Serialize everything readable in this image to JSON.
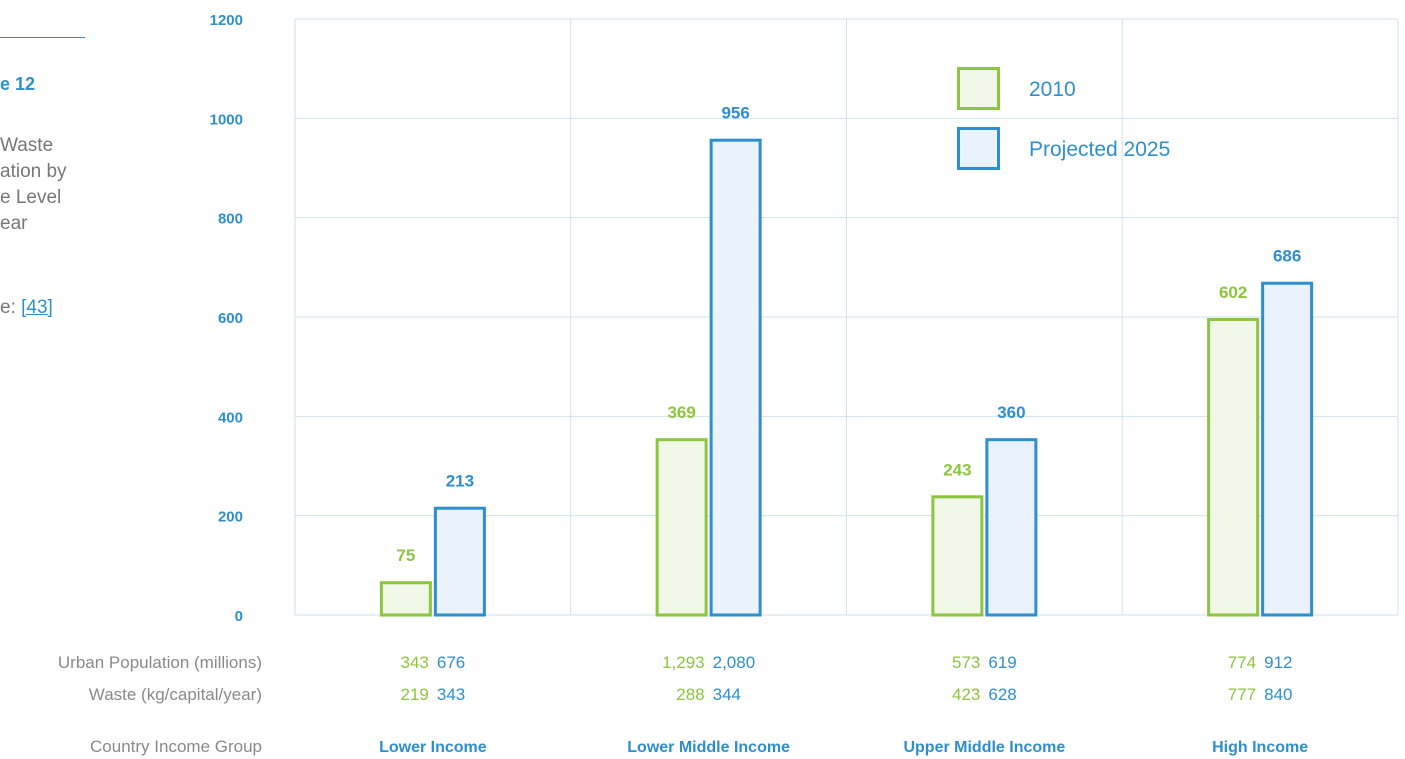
{
  "sidebar": {
    "figure_label": "e 12",
    "title_lines": [
      " Waste",
      "ation by",
      "e Level",
      "ear"
    ],
    "source_prefix": "e: ",
    "source_ref": "[43]"
  },
  "colors": {
    "series_2010": "#8cc63f",
    "series_2010_fill": "#f1f8e8",
    "series_2025": "#2e8fcf",
    "series_2025_fill": "#eaf3fb",
    "accent": "#2e8fcf",
    "muted_text": "#8a8a8a"
  },
  "chart_data": {
    "type": "bar",
    "categories": [
      "Lower Income",
      "Lower Middle Income",
      "Upper Middle Income",
      "High Income"
    ],
    "series": [
      {
        "name": "2010",
        "values": [
          75,
          369,
          243,
          602
        ]
      },
      {
        "name": "Projected 2025",
        "values": [
          213,
          956,
          360,
          686
        ]
      }
    ],
    "bar_heights": {
      "2010": [
        68,
        356,
        241,
        598
      ],
      "Projected 2025": [
        218,
        959,
        356,
        671
      ]
    },
    "ylim": [
      0,
      1200
    ],
    "yticks": [
      0,
      200,
      400,
      600,
      800,
      1000,
      1200
    ],
    "grid": true,
    "legend_position": "top-right",
    "table_rows": [
      {
        "label": "Urban Population (millions)",
        "values_2010": [
          "343",
          "1,293",
          "573",
          "774"
        ],
        "values_2025": [
          "676",
          "2,080",
          "619",
          "912"
        ]
      },
      {
        "label": "Waste (kg/capital/year)",
        "values_2010": [
          "219",
          "288",
          "423",
          "777"
        ],
        "values_2025": [
          "343",
          "344",
          "628",
          "840"
        ]
      }
    ],
    "category_row_label": "Country Income Group"
  }
}
